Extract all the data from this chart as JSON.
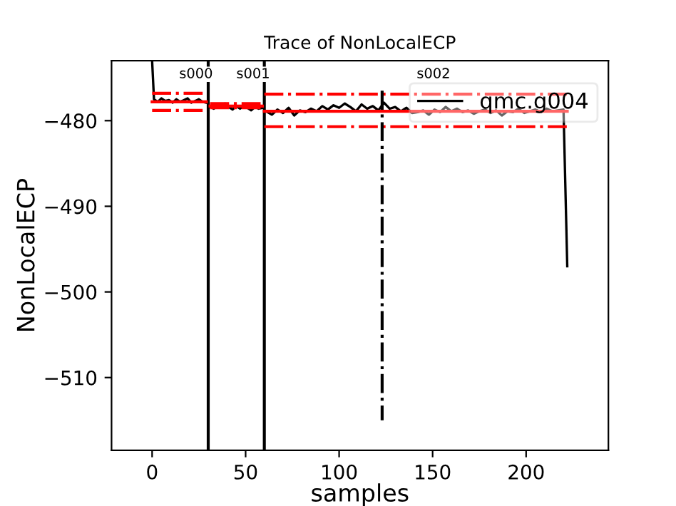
{
  "chart_data": {
    "type": "line",
    "title": "Trace of NonLocalECP",
    "xlabel": "samples",
    "ylabel": "NonLocalECP",
    "xlim": [
      -21.7,
      244
    ],
    "xticks": [
      0,
      50,
      100,
      150,
      200
    ],
    "ylim": [
      -518.5,
      -473
    ],
    "yticks": [
      -510,
      -500,
      -490,
      -480
    ],
    "legend": "top right",
    "grid": false,
    "series": [
      {
        "name": "qmc.g004",
        "color": "#000000",
        "line_style": "solid",
        "x": [
          0,
          1,
          3,
          5,
          7,
          9,
          11,
          13,
          15,
          17,
          19,
          21,
          23,
          25,
          27,
          29,
          30,
          31,
          33,
          35,
          37,
          39,
          41,
          43,
          45,
          47,
          49,
          51,
          53,
          55,
          57,
          59,
          60,
          61,
          64,
          67,
          70,
          73,
          76,
          79,
          82,
          85,
          88,
          91,
          94,
          97,
          100,
          103,
          106,
          109,
          112,
          115,
          118,
          121,
          124,
          127,
          130,
          133,
          136,
          139,
          142,
          145,
          148,
          151,
          154,
          157,
          160,
          163,
          166,
          169,
          172,
          175,
          178,
          181,
          184,
          187,
          190,
          193,
          196,
          199,
          202,
          205,
          208,
          211,
          214,
          217,
          220,
          222
        ],
        "values": [
          -473,
          -477.5,
          -477.8,
          -477.4,
          -477.7,
          -477.6,
          -477.9,
          -477.5,
          -477.8,
          -477.6,
          -477.4,
          -477.9,
          -477.7,
          -477.5,
          -477.8,
          -477.9,
          null,
          -478.4,
          -478.6,
          -478.2,
          -478.5,
          -478.0,
          -478.4,
          -478.7,
          -478.3,
          -478.6,
          -478.2,
          -478.5,
          -478.8,
          -478.4,
          -478.6,
          -478.5,
          null,
          -478.9,
          -479.3,
          -478.7,
          -479.1,
          -478.5,
          -479.4,
          -478.8,
          -479.0,
          -478.6,
          -478.9,
          -478.3,
          -478.7,
          -478.2,
          -478.5,
          -478.0,
          -478.4,
          -478.9,
          -478.1,
          -478.6,
          -478.3,
          -478.8,
          -477.9,
          -478.6,
          -478.4,
          -478.9,
          -478.5,
          -479.1,
          -479.0,
          -478.8,
          -479.3,
          -478.7,
          -479.0,
          -478.4,
          -478.9,
          -478.6,
          -479.0,
          -478.8,
          -479.2,
          -478.9,
          -478.7,
          -479.1,
          -478.8,
          -479.4,
          -478.9,
          -479.0,
          -478.6,
          -479.1,
          -478.9,
          -478.7,
          -479.0,
          -478.6,
          -478.9,
          -478.8,
          -478.7,
          -497
        ]
      },
      {
        "color": "#ff0000",
        "line_style": "solid",
        "x": [
          0,
          29
        ],
        "values": [
          -477.8,
          -477.8
        ]
      },
      {
        "color": "#ff0000",
        "line_style": "dashdot",
        "x": [
          0,
          29
        ],
        "values": [
          -476.8,
          -476.8
        ]
      },
      {
        "color": "#ff0000",
        "line_style": "dashdot",
        "x": [
          0,
          29
        ],
        "values": [
          -478.8,
          -478.8
        ]
      },
      {
        "color": "#ff0000",
        "line_style": "solid",
        "x": [
          31,
          59
        ],
        "values": [
          -478.3,
          -478.3
        ]
      },
      {
        "color": "#ff0000",
        "line_style": "dashdot",
        "x": [
          31,
          59
        ],
        "values": [
          -478.0,
          -478.0
        ]
      },
      {
        "color": "#ff0000",
        "line_style": "dashdot",
        "x": [
          31,
          59
        ],
        "values": [
          -478.5,
          -478.5
        ]
      },
      {
        "color": "#ff0000",
        "line_style": "solid",
        "x": [
          60,
          222
        ],
        "values": [
          -478.9,
          -478.9
        ]
      },
      {
        "color": "#ff0000",
        "line_style": "dashdot",
        "x": [
          60,
          222
        ],
        "values": [
          -476.9,
          -476.9
        ]
      },
      {
        "color": "#ff0000",
        "line_style": "dashdot",
        "x": [
          60,
          222
        ],
        "values": [
          -480.7,
          -480.7
        ]
      },
      {
        "color": "#000000",
        "line_style": "dashdot",
        "x": [
          123,
          123
        ],
        "values": [
          -476.5,
          -515
        ]
      }
    ],
    "ref_lines": [
      {
        "axis": "x",
        "value": 30,
        "color": "#000000",
        "line_style": "solid"
      },
      {
        "axis": "x",
        "value": 60,
        "color": "#000000",
        "line_style": "solid"
      }
    ],
    "annotations": [
      "s000",
      "s001",
      "s002"
    ]
  }
}
